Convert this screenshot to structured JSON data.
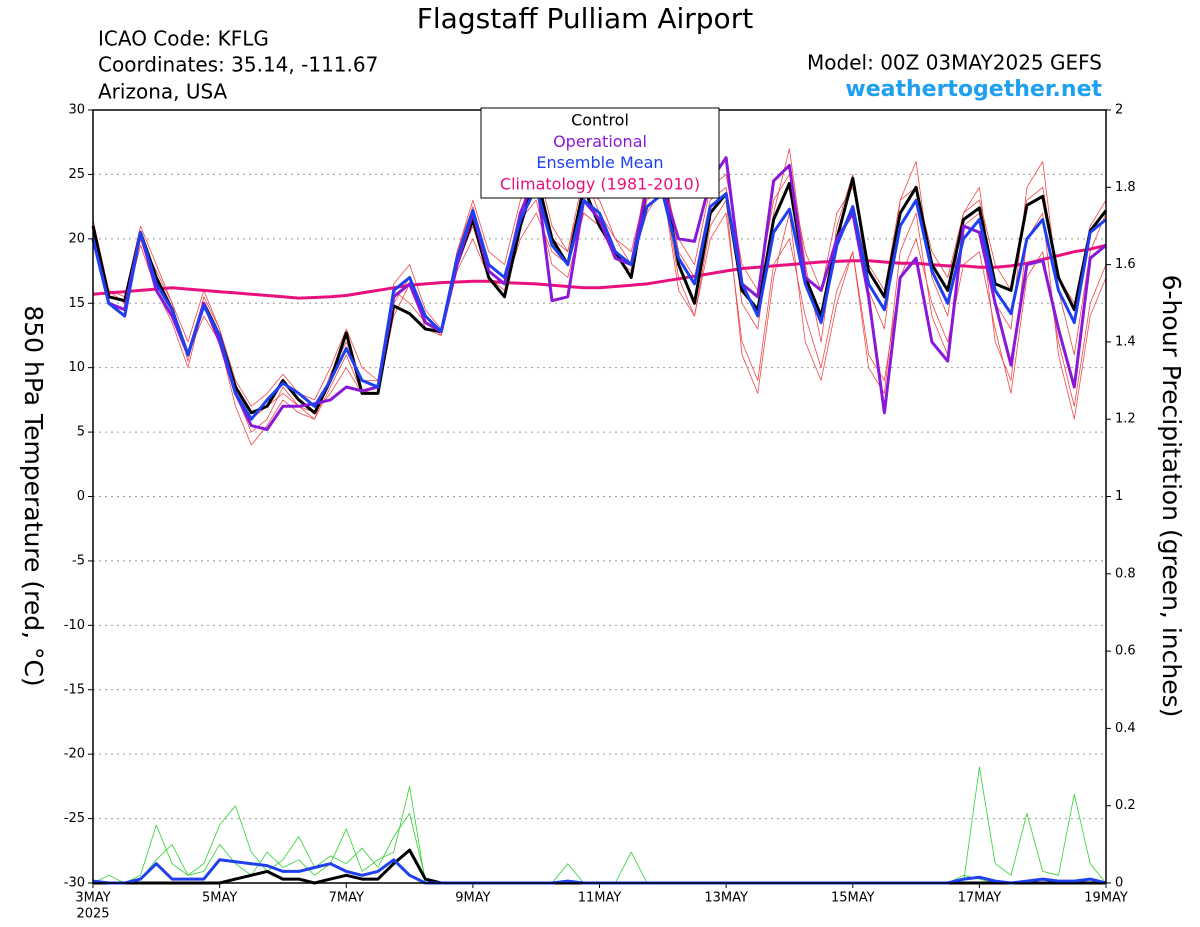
{
  "chart_data": {
    "type": "line",
    "title": "Flagstaff Pulliam Airport",
    "station_lines": [
      "ICAO Code: KFLG",
      "Coordinates: 35.14, -111.67",
      "Arizona, USA"
    ],
    "model_label": "Model: 00Z 03MAY2025 GEFS",
    "source": "weathertogether.net",
    "ylabel": "850 hPa Temperature (red, °C)",
    "y2label": "6-hour Precipitation (green, inches)",
    "year_label": "2025",
    "categories": [
      "3MAY",
      null,
      null,
      null,
      null,
      null,
      null,
      null,
      "5MAY",
      null,
      null,
      null,
      null,
      null,
      null,
      null,
      "7MAY",
      null,
      null,
      null,
      null,
      null,
      null,
      null,
      "9MAY",
      null,
      null,
      null,
      null,
      null,
      null,
      null,
      "11MAY",
      null,
      null,
      null,
      null,
      null,
      null,
      null,
      "13MAY",
      null,
      null,
      null,
      null,
      null,
      null,
      null,
      "15MAY",
      null,
      null,
      null,
      null,
      null,
      null,
      null,
      "17MAY",
      null,
      null,
      null,
      null,
      null,
      null,
      null,
      "19MAY"
    ],
    "ylim": [
      -30,
      30
    ],
    "yticks": [
      -30,
      -25,
      -20,
      -15,
      -10,
      -5,
      0,
      5,
      10,
      15,
      20,
      25,
      30
    ],
    "y2lim": [
      0,
      2
    ],
    "y2ticks": [
      0,
      0.2,
      0.4,
      0.6,
      0.8,
      1,
      1.2,
      1.4,
      1.6,
      1.8,
      2
    ],
    "grid": true,
    "ensemble_members": {
      "color": "#f04848",
      "members": [
        [
          21.5,
          16,
          15,
          20,
          17.5,
          15,
          10.5,
          15.5,
          13,
          8,
          5,
          6,
          8.5,
          7,
          6,
          9.5,
          12,
          9,
          9,
          16,
          15,
          13.5,
          13,
          19,
          22.5,
          18,
          17,
          22,
          26,
          21,
          19,
          25,
          22,
          20,
          18,
          25,
          26,
          19,
          17,
          23,
          24,
          15,
          13,
          22,
          27,
          18,
          12,
          21,
          25,
          16,
          13,
          23,
          26,
          17,
          14,
          22,
          24,
          15,
          13,
          24,
          26,
          16,
          11,
          19,
          22
        ],
        [
          20,
          15,
          14.5,
          19.5,
          16,
          14,
          11,
          14,
          12,
          7,
          4,
          5.5,
          7.5,
          6.5,
          6,
          8.5,
          11,
          8,
          8.5,
          16.5,
          18,
          14.5,
          13,
          18,
          21,
          17,
          16,
          21.5,
          23,
          18,
          17,
          22,
          21,
          18.5,
          17.5,
          23,
          24,
          17,
          14,
          20,
          22,
          12,
          9,
          18,
          20,
          14,
          10,
          16,
          19,
          11,
          9,
          17,
          20,
          15,
          12,
          18,
          19,
          13,
          8,
          17,
          19,
          12,
          7,
          15,
          18
        ],
        [
          21,
          16,
          15.5,
          21,
          18,
          15,
          12,
          16,
          13,
          9,
          7,
          8,
          9.5,
          8,
          7.5,
          10,
          13,
          10,
          9,
          15,
          17,
          13,
          12.5,
          19,
          23,
          19,
          18,
          23,
          25,
          20,
          19,
          24,
          23,
          20,
          19,
          24,
          25,
          20,
          18,
          24,
          25,
          18,
          16,
          23,
          25,
          19,
          16,
          22,
          24,
          18,
          16,
          23,
          24,
          19,
          17,
          22,
          23,
          18,
          16,
          23,
          24,
          17,
          15,
          21,
          23
        ],
        [
          20.5,
          15,
          14,
          20,
          16,
          13.5,
          10,
          15,
          12,
          8.5,
          6,
          7,
          8,
          7,
          6.5,
          8,
          10,
          8,
          8,
          14,
          16.5,
          14,
          12.5,
          17.5,
          20,
          17,
          16,
          20,
          22,
          19,
          18,
          22,
          21,
          19,
          18,
          22,
          24,
          16,
          14,
          21,
          23,
          11,
          8,
          17,
          22,
          12,
          9,
          15,
          19,
          10,
          8,
          19,
          22,
          14,
          11,
          21,
          22,
          12,
          9,
          20,
          22,
          11,
          6,
          14,
          17
        ]
      ]
    },
    "precip_members": {
      "color": "#30d030",
      "axis": "y2",
      "members": [
        [
          0,
          0.02,
          0,
          0.02,
          0.15,
          0.05,
          0.02,
          0.03,
          0.1,
          0.05,
          0.02,
          0.08,
          0.04,
          0.06,
          0.02,
          0.05,
          0.14,
          0.03,
          0.06,
          0.08,
          0.25,
          0,
          0,
          0,
          0,
          0,
          0,
          0,
          0,
          0,
          0,
          0,
          0,
          0,
          0,
          0,
          0,
          0,
          0,
          0,
          0,
          0,
          0,
          0,
          0,
          0,
          0,
          0,
          0,
          0,
          0,
          0,
          0,
          0,
          0,
          0,
          0.3,
          0.05,
          0.02,
          0.18,
          0.03,
          0.02,
          0.23,
          0.05,
          0
        ],
        [
          0,
          0,
          0,
          0.01,
          0.06,
          0.1,
          0.02,
          0.05,
          0.15,
          0.2,
          0.08,
          0.03,
          0.06,
          0.12,
          0.04,
          0.07,
          0.05,
          0.09,
          0.04,
          0.12,
          0.18,
          0.01,
          0,
          0,
          0,
          0,
          0,
          0,
          0,
          0,
          0.05,
          0,
          0,
          0,
          0.08,
          0,
          0,
          0,
          0,
          0,
          0,
          0,
          0,
          0,
          0,
          0,
          0,
          0,
          0,
          0,
          0,
          0,
          0,
          0,
          0,
          0.02,
          0.01,
          0,
          0,
          0,
          0,
          0,
          0,
          0,
          0
        ]
      ]
    },
    "precip_series": [
      {
        "color": "#000000",
        "axis": "y2",
        "values": [
          0,
          0,
          0,
          0,
          0,
          0,
          0,
          0,
          0,
          0.01,
          0.02,
          0.03,
          0.01,
          0.01,
          0,
          0.01,
          0.02,
          0.01,
          0.01,
          0.05,
          0.085,
          0.01,
          0,
          0,
          0,
          0,
          0,
          0,
          0,
          0,
          0,
          0,
          0,
          0,
          0,
          0,
          0,
          0,
          0,
          0,
          0,
          0,
          0,
          0,
          0,
          0,
          0,
          0,
          0,
          0,
          0,
          0,
          0,
          0,
          0,
          0,
          0,
          0,
          0,
          0,
          0,
          0,
          0,
          0,
          0
        ]
      },
      {
        "color": "#2040f0",
        "axis": "y2",
        "values": [
          0.005,
          0,
          0,
          0.01,
          0.05,
          0.01,
          0.01,
          0.01,
          0.06,
          0.055,
          0.05,
          0.045,
          0.03,
          0.03,
          0.04,
          0.05,
          0.03,
          0.02,
          0.03,
          0.06,
          0.02,
          0,
          0,
          0,
          0,
          0,
          0,
          0,
          0,
          0,
          0.005,
          0,
          0,
          0,
          0,
          0,
          0,
          0,
          0,
          0,
          0,
          0,
          0,
          0,
          0,
          0,
          0,
          0,
          0,
          0,
          0,
          0,
          0,
          0,
          0,
          0.01,
          0.015,
          0.005,
          0,
          0.005,
          0.01,
          0.005,
          0.005,
          0.01,
          0
        ]
      }
    ],
    "series": [
      {
        "name": "Control",
        "color": "#000000",
        "values": [
          21,
          15.5,
          15.2,
          20.5,
          17,
          14.5,
          11,
          15,
          12.5,
          8.5,
          6.5,
          7,
          9,
          7.5,
          6.5,
          9,
          12.7,
          8,
          8,
          14.8,
          14.2,
          13,
          12.8,
          18,
          21.5,
          17,
          15.5,
          21,
          25,
          20,
          18,
          24,
          21,
          19,
          17,
          24,
          25,
          18,
          15,
          22,
          23.5,
          16,
          14.5,
          21.5,
          24.3,
          17,
          14,
          20,
          24.7,
          17.5,
          15.5,
          22,
          24,
          18,
          16,
          21.5,
          22.4,
          16.5,
          16,
          22.6,
          23.3,
          17,
          14.5,
          20.6,
          22.2
        ]
      },
      {
        "name": "Operational",
        "color": "#8a18d8",
        "values": [
          20,
          15,
          14.5,
          20.5,
          16,
          14,
          11,
          15,
          12,
          8,
          5.5,
          5.2,
          7,
          7,
          7.2,
          7.5,
          8.5,
          8.2,
          8.5,
          15.5,
          16.5,
          13.5,
          12.8,
          18,
          22,
          17.5,
          16.5,
          22,
          25,
          15.2,
          15.5,
          23,
          21.5,
          18.5,
          18,
          24,
          24,
          20,
          19.8,
          24.5,
          26.3,
          16.5,
          15.5,
          24.5,
          25.7,
          17,
          16,
          20,
          22,
          15.5,
          6.5,
          17,
          18.5,
          12,
          10.5,
          21,
          20.5,
          15,
          10.2,
          18,
          18.3,
          13,
          8.5,
          18.5,
          19.5
        ]
      },
      {
        "name": "Ensemble Mean",
        "color": "#2040f0",
        "values": [
          20,
          15,
          14,
          20.5,
          16.5,
          14.5,
          11,
          14.8,
          12.5,
          8,
          6,
          7.5,
          8.8,
          8,
          7,
          9,
          11.5,
          9,
          8.5,
          16,
          17,
          14,
          12.8,
          18.5,
          22.2,
          18,
          17,
          21.5,
          24,
          19.5,
          18,
          23,
          22,
          19,
          18,
          22.5,
          23.5,
          18.5,
          16.5,
          22.5,
          23.5,
          16.5,
          14,
          20.5,
          22.3,
          16.5,
          13.5,
          19.5,
          22.5,
          16.5,
          14.5,
          21,
          23,
          17.5,
          15,
          20,
          21.5,
          16,
          14.2,
          20,
          21.5,
          16,
          13.5,
          20.5,
          21.5
        ]
      },
      {
        "name": "Climatology (1981-2010)",
        "color": "#e8107e",
        "values": [
          15.7,
          15.8,
          15.9,
          16,
          16.1,
          16.2,
          16.1,
          16,
          15.9,
          15.8,
          15.7,
          15.6,
          15.5,
          15.4,
          15.45,
          15.5,
          15.6,
          15.8,
          16,
          16.2,
          16.4,
          16.5,
          16.6,
          16.65,
          16.7,
          16.7,
          16.6,
          16.55,
          16.5,
          16.4,
          16.3,
          16.2,
          16.2,
          16.3,
          16.4,
          16.5,
          16.7,
          16.9,
          17.1,
          17.3,
          17.5,
          17.7,
          17.8,
          17.9,
          18,
          18.1,
          18.2,
          18.25,
          18.3,
          18.3,
          18.2,
          18.1,
          18.1,
          18,
          17.9,
          17.9,
          17.8,
          17.8,
          17.9,
          18.1,
          18.4,
          18.7,
          19,
          19.2,
          19.5
        ]
      }
    ]
  }
}
